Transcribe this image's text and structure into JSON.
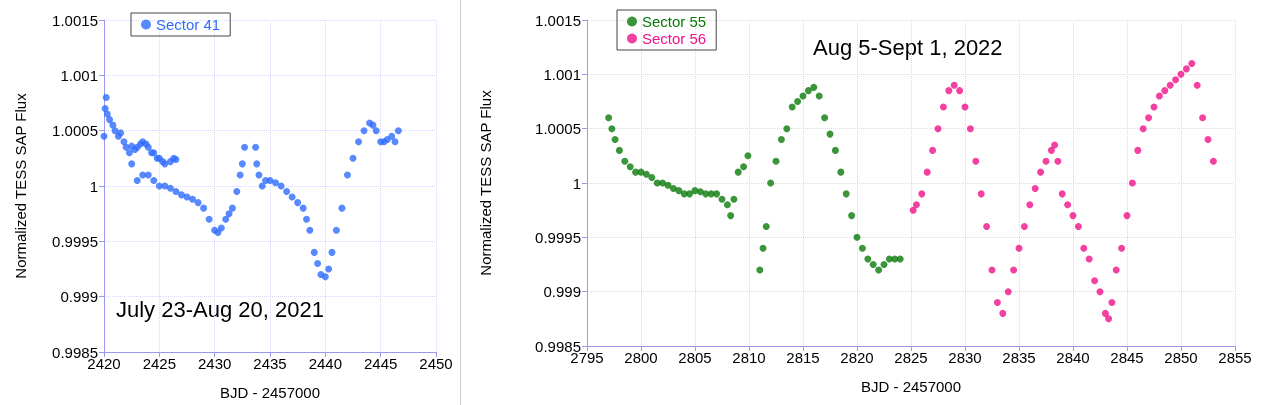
{
  "chart_data": [
    {
      "type": "scatter",
      "xlabel": "BJD - 2457000",
      "ylabel": "Normalized TESS SAP Flux",
      "annotations": [
        "July 23-Aug 20, 2021"
      ],
      "xlim": [
        2420,
        2450
      ],
      "xticks": [
        2420,
        2425,
        2430,
        2435,
        2440,
        2445,
        2450
      ],
      "ylim": [
        0.9985,
        1.0015
      ],
      "yticks": [
        0.9985,
        0.999,
        0.9995,
        1,
        1.0005,
        1.001,
        1.0015
      ],
      "grid": true,
      "legend": "top left",
      "marker": "circle",
      "series": [
        {
          "name": "Sector 41",
          "color": "#2f6bff",
          "x": [
            2420,
            2420.1,
            2420.2,
            2420.3,
            2420.5,
            2420.8,
            2421,
            2421.3,
            2421.5,
            2421.8,
            2422,
            2422.3,
            2422.5,
            2422.8,
            2423,
            2423.3,
            2423.5,
            2423.8,
            2424,
            2424.3,
            2424.5,
            2424.8,
            2425,
            2425.3,
            2425.5,
            2426,
            2426.3,
            2426.5,
            2422.5,
            2423,
            2423.5,
            2424,
            2424.5,
            2425,
            2425.5,
            2426,
            2426.5,
            2427,
            2427.5,
            2428,
            2428.5,
            2429,
            2429.5,
            2430,
            2430.3,
            2430.6,
            2431,
            2431.3,
            2431.6,
            2432,
            2432.3,
            2432.5,
            2432.7,
            2433.7,
            2433.8,
            2434,
            2434.3,
            2434.6,
            2435,
            2435.5,
            2436,
            2436.5,
            2437,
            2437.5,
            2438,
            2438.3,
            2438.6,
            2439,
            2439.3,
            2439.6,
            2440,
            2440.3,
            2440.6,
            2441,
            2441.5,
            2442,
            2442.5,
            2443,
            2443.5,
            2444,
            2444.3,
            2444.6,
            2445,
            2445.3,
            2445.6,
            2446,
            2446.3,
            2446.6
          ],
          "values": [
            1.00045,
            1.0007,
            1.0008,
            1.00065,
            1.0006,
            1.00055,
            1.0005,
            1.00045,
            1.00048,
            1.0004,
            1.00035,
            1.0003,
            1.00036,
            1.00033,
            1.00035,
            1.00038,
            1.0004,
            1.00038,
            1.00035,
            1.0003,
            1.0003,
            1.00025,
            1.00025,
            1.00022,
            1.0002,
            1.00022,
            1.00025,
            1.00024,
            1.0002,
            1.00005,
            1.0001,
            1.0001,
            1.00005,
            1.0,
            1.0,
            0.99998,
            0.99995,
            0.99992,
            0.9999,
            0.99988,
            0.99985,
            0.9998,
            0.9997,
            0.9996,
            0.99958,
            0.99962,
            0.9997,
            0.99975,
            0.9998,
            0.99995,
            1.0001,
            1.0002,
            1.00035,
            1.00035,
            1.0002,
            1.0001,
            1.0,
            1.00005,
            1.00005,
            1.00003,
            1.0,
            0.99995,
            0.9999,
            0.99985,
            0.9998,
            0.9997,
            0.9996,
            0.9994,
            0.9993,
            0.9992,
            0.99918,
            0.99925,
            0.9994,
            0.9996,
            0.9998,
            1.0001,
            1.00025,
            1.0004,
            1.0005,
            1.00057,
            1.00055,
            1.0005,
            1.0004,
            1.0004,
            1.00042,
            1.00045,
            1.0004,
            1.0005
          ]
        }
      ]
    },
    {
      "type": "scatter",
      "xlabel": "BJD - 2457000",
      "ylabel": "Normalized TESS SAP Flux",
      "annotations": [
        "Aug 5-Sept 1, 2022"
      ],
      "xlim": [
        2795,
        2855
      ],
      "xticks": [
        2795,
        2800,
        2805,
        2810,
        2815,
        2820,
        2825,
        2830,
        2835,
        2840,
        2845,
        2850,
        2855
      ],
      "ylim": [
        0.9985,
        1.0015
      ],
      "yticks": [
        0.9985,
        0.999,
        0.9995,
        1,
        1.0005,
        1.001,
        1.0015
      ],
      "grid": true,
      "legend": "top left",
      "marker": "circle",
      "series": [
        {
          "name": "Sector 55",
          "color": "#0a7a0a",
          "x": [
            2797,
            2797.3,
            2797.6,
            2798,
            2798.5,
            2799,
            2799.5,
            2800,
            2800.5,
            2801,
            2801.5,
            2802,
            2802.5,
            2803,
            2803.5,
            2804,
            2804.5,
            2805,
            2805.5,
            2806,
            2806.5,
            2807,
            2807.5,
            2808,
            2808.3,
            2808.6,
            2809,
            2809.5,
            2809.9,
            2811,
            2811.3,
            2811.6,
            2812,
            2812.5,
            2813,
            2813.5,
            2814,
            2814.5,
            2815,
            2815.5,
            2816,
            2816.5,
            2817,
            2817.5,
            2818,
            2818.5,
            2819,
            2819.5,
            2820,
            2820.5,
            2821,
            2821.5,
            2822,
            2822.5,
            2823,
            2823.5,
            2824
          ],
          "values": [
            1.0006,
            1.0005,
            1.0004,
            1.0003,
            1.0002,
            1.00015,
            1.0001,
            1.0001,
            1.00008,
            1.00005,
            1.0,
            1.0,
            0.99998,
            0.99995,
            0.99993,
            0.9999,
            0.9999,
            0.99993,
            0.99992,
            0.9999,
            0.9999,
            0.9999,
            0.99985,
            0.9998,
            0.9997,
            0.99985,
            1.0001,
            1.00015,
            1.00025,
            0.9992,
            0.9994,
            0.9996,
            1.0,
            1.0002,
            1.0004,
            1.0005,
            1.0007,
            1.00075,
            1.0008,
            1.00085,
            1.00088,
            1.0008,
            1.0006,
            1.00045,
            1.0003,
            1.0001,
            0.9999,
            0.9997,
            0.9995,
            0.9994,
            0.9993,
            0.99925,
            0.9992,
            0.99925,
            0.9993,
            0.9993,
            0.9993
          ]
        },
        {
          "name": "Sector 56",
          "color": "#f0128a",
          "x": [
            2825.2,
            2825.5,
            2826,
            2826.5,
            2827,
            2827.5,
            2828,
            2828.5,
            2829,
            2829.5,
            2830,
            2830.5,
            2831,
            2831.5,
            2832,
            2832.5,
            2833,
            2833.5,
            2834,
            2834.5,
            2835,
            2835.5,
            2836,
            2836.5,
            2837,
            2837.5,
            2838,
            2838.3,
            2838.6,
            2839,
            2839.5,
            2840,
            2840.5,
            2841,
            2841.5,
            2842,
            2842.5,
            2843,
            2843.3,
            2843.6,
            2844,
            2844.5,
            2845,
            2845.5,
            2846,
            2846.5,
            2847,
            2847.5,
            2848,
            2848.5,
            2849,
            2849.5,
            2850,
            2850.5,
            2851,
            2851.5,
            2852,
            2852.5,
            2853
          ],
          "values": [
            0.99975,
            0.9998,
            0.9999,
            1.0001,
            1.0003,
            1.0005,
            1.0007,
            1.00085,
            1.0009,
            1.00085,
            1.0007,
            1.0005,
            1.0002,
            0.9999,
            0.9996,
            0.9992,
            0.9989,
            0.9988,
            0.999,
            0.9992,
            0.9994,
            0.9996,
            0.9998,
            0.99995,
            1.0001,
            1.0002,
            1.0003,
            1.00035,
            1.0002,
            0.9999,
            0.9998,
            0.9997,
            0.9996,
            0.9994,
            0.9993,
            0.9991,
            0.999,
            0.9988,
            0.99875,
            0.9989,
            0.9992,
            0.9994,
            0.9997,
            1.0,
            1.0003,
            1.0005,
            1.0006,
            1.0007,
            1.0008,
            1.00085,
            1.0009,
            1.00095,
            1.001,
            1.00105,
            1.0011,
            1.0009,
            1.0006,
            1.0004,
            1.0002
          ]
        }
      ]
    }
  ]
}
